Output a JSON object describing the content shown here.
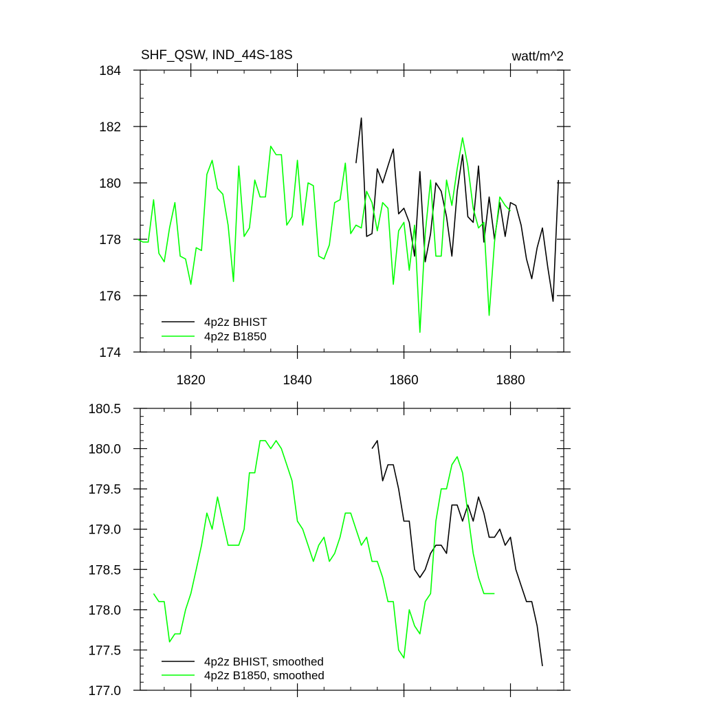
{
  "chart_data": [
    {
      "type": "line",
      "title": "SHF_QSW, IND_44S-18S",
      "units": "watt/m^2",
      "xlim": [
        1810.5,
        1890
      ],
      "ylim": [
        174,
        184
      ],
      "xticks": [
        1820,
        1840,
        1860,
        1880
      ],
      "yticks": [
        174,
        176,
        178,
        180,
        182,
        184
      ],
      "ytick_labels": [
        "174",
        "176",
        "178",
        "180",
        "182",
        "184"
      ],
      "legend_position": "bottom-left",
      "series": [
        {
          "name": "4p2z BHIST",
          "color": "#000000",
          "x": [
            1851,
            1852,
            1853,
            1854,
            1855,
            1856,
            1857,
            1858,
            1859,
            1860,
            1861,
            1862,
            1863,
            1864,
            1865,
            1866,
            1867,
            1868,
            1869,
            1870,
            1871,
            1872,
            1873,
            1874,
            1875,
            1876,
            1877,
            1878,
            1879,
            1880,
            1881,
            1882,
            1883,
            1884,
            1885,
            1886,
            1887,
            1888,
            1889
          ],
          "values": [
            180.7,
            182.3,
            178.1,
            178.2,
            180.5,
            180.0,
            180.6,
            181.2,
            178.9,
            179.1,
            178.6,
            177.4,
            180.4,
            177.2,
            178.2,
            180.0,
            179.7,
            178.8,
            177.4,
            179.7,
            181.0,
            178.8,
            178.6,
            180.6,
            177.9,
            179.5,
            178.0,
            179.3,
            178.1,
            179.3,
            179.2,
            178.5,
            177.3,
            176.6,
            177.7,
            178.4,
            177.0,
            175.8,
            180.1
          ]
        },
        {
          "name": "4p2z B1850",
          "color": "#00ff00",
          "x": [
            1810,
            1811,
            1812,
            1813,
            1814,
            1815,
            1816,
            1817,
            1818,
            1819,
            1820,
            1821,
            1822,
            1823,
            1824,
            1825,
            1826,
            1827,
            1828,
            1829,
            1830,
            1831,
            1832,
            1833,
            1834,
            1835,
            1836,
            1837,
            1838,
            1839,
            1840,
            1841,
            1842,
            1843,
            1844,
            1845,
            1846,
            1847,
            1848,
            1849,
            1850,
            1851,
            1852,
            1853,
            1854,
            1855,
            1856,
            1857,
            1858,
            1859,
            1860,
            1861,
            1862,
            1863,
            1864,
            1865,
            1866,
            1867,
            1868,
            1869,
            1870,
            1871,
            1872,
            1873,
            1874,
            1875,
            1876,
            1877,
            1878,
            1879,
            1880
          ],
          "values": [
            178.0,
            177.9,
            177.9,
            179.4,
            177.5,
            177.2,
            178.4,
            179.3,
            177.4,
            177.3,
            176.4,
            177.7,
            177.6,
            180.3,
            180.8,
            179.8,
            179.6,
            178.5,
            176.5,
            180.6,
            178.1,
            178.4,
            180.1,
            179.5,
            179.5,
            181.3,
            181.0,
            181.0,
            178.5,
            178.8,
            180.8,
            178.5,
            180.0,
            179.9,
            177.4,
            177.3,
            177.8,
            179.3,
            179.4,
            180.7,
            178.2,
            178.5,
            178.4,
            179.7,
            179.3,
            178.3,
            179.3,
            179.1,
            176.4,
            178.3,
            178.6,
            176.9,
            178.5,
            174.7,
            178.2,
            180.1,
            177.4,
            177.4,
            180.1,
            179.2,
            180.5,
            181.6,
            180.6,
            179.1,
            178.4,
            178.6,
            175.3,
            177.9,
            179.5,
            179.2,
            179.0
          ]
        }
      ]
    },
    {
      "type": "line",
      "title": "",
      "xlim": [
        1810.5,
        1890
      ],
      "ylim": [
        177.0,
        180.5
      ],
      "xticks": [
        1820,
        1840,
        1860,
        1880
      ],
      "yticks": [
        177.0,
        177.5,
        178.0,
        178.5,
        179.0,
        179.5,
        180.0,
        180.5
      ],
      "ytick_labels": [
        "177.0",
        "177.5",
        "178.0",
        "178.5",
        "179.0",
        "179.5",
        "180.0",
        "180.5"
      ],
      "legend_position": "bottom-left",
      "series": [
        {
          "name": "4p2z BHIST, smoothed",
          "color": "#000000",
          "x": [
            1854,
            1855,
            1856,
            1857,
            1858,
            1859,
            1860,
            1861,
            1862,
            1863,
            1864,
            1865,
            1866,
            1867,
            1868,
            1869,
            1870,
            1871,
            1872,
            1873,
            1874,
            1875,
            1876,
            1877,
            1878,
            1879,
            1880,
            1881,
            1882,
            1883,
            1884,
            1885,
            1886
          ],
          "values": [
            180.0,
            180.1,
            179.6,
            179.8,
            179.8,
            179.5,
            179.1,
            179.1,
            178.5,
            178.4,
            178.5,
            178.7,
            178.8,
            178.8,
            178.7,
            179.3,
            179.3,
            179.1,
            179.3,
            179.1,
            179.4,
            179.2,
            178.9,
            178.9,
            179.0,
            178.8,
            178.9,
            178.5,
            178.3,
            178.1,
            178.1,
            177.8,
            177.3
          ]
        },
        {
          "name": "4p2z B1850, smoothed",
          "color": "#00ff00",
          "x": [
            1813,
            1814,
            1815,
            1816,
            1817,
            1818,
            1819,
            1820,
            1821,
            1822,
            1823,
            1824,
            1825,
            1826,
            1827,
            1828,
            1829,
            1830,
            1831,
            1832,
            1833,
            1834,
            1835,
            1836,
            1837,
            1838,
            1839,
            1840,
            1841,
            1842,
            1843,
            1844,
            1845,
            1846,
            1847,
            1848,
            1849,
            1850,
            1851,
            1852,
            1853,
            1854,
            1855,
            1856,
            1857,
            1858,
            1859,
            1860,
            1861,
            1862,
            1863,
            1864,
            1865,
            1866,
            1867,
            1868,
            1869,
            1870,
            1871,
            1872,
            1873,
            1874,
            1875,
            1876,
            1877
          ],
          "values": [
            178.2,
            178.1,
            178.1,
            177.6,
            177.7,
            177.7,
            178.0,
            178.2,
            178.5,
            178.8,
            179.2,
            179.0,
            179.4,
            179.1,
            178.8,
            178.8,
            178.8,
            179.0,
            179.7,
            179.7,
            180.1,
            180.1,
            180.0,
            180.1,
            180.0,
            179.8,
            179.6,
            179.1,
            179.0,
            178.8,
            178.6,
            178.8,
            178.9,
            178.6,
            178.7,
            178.9,
            179.2,
            179.2,
            179.0,
            178.8,
            178.9,
            178.6,
            178.6,
            178.4,
            178.1,
            178.1,
            177.5,
            177.4,
            178.0,
            177.8,
            177.7,
            178.1,
            178.2,
            179.1,
            179.5,
            179.5,
            179.8,
            179.9,
            179.7,
            179.2,
            178.7,
            178.4,
            178.2,
            178.2,
            178.2
          ]
        }
      ]
    }
  ]
}
